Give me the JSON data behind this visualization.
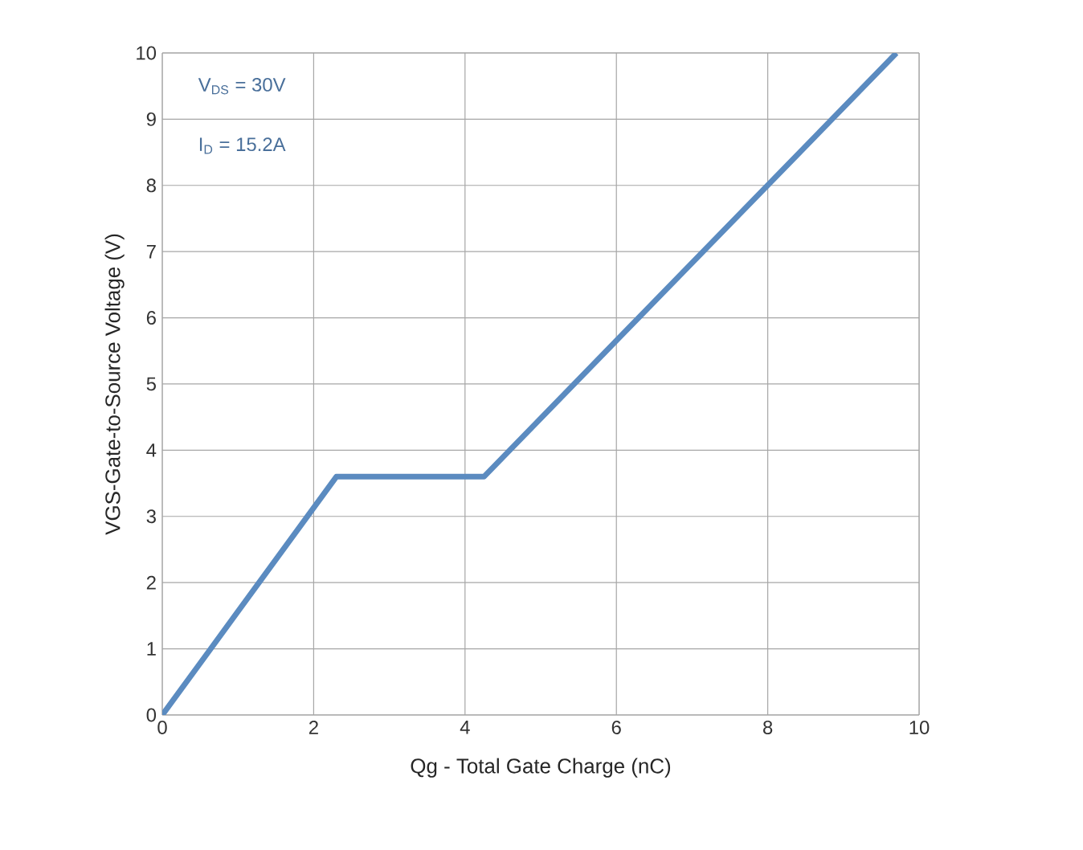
{
  "chart_data": {
    "type": "line",
    "xlabel": "Qg - Total Gate Charge (nC)",
    "ylabel": "VGS-Gate-to-Source Voltage (V)",
    "x": [
      0,
      2.3,
      4.25,
      9.7
    ],
    "series": [
      {
        "color": "#5b8bc0",
        "values": [
          0,
          3.6,
          3.6,
          10
        ]
      }
    ],
    "xlim": [
      0,
      10
    ],
    "ylim": [
      0,
      10
    ],
    "xticks": [
      0,
      2,
      4,
      6,
      8,
      10
    ],
    "yticks": [
      0,
      1,
      2,
      3,
      4,
      5,
      6,
      7,
      8,
      9,
      10
    ],
    "grid": true,
    "marker": "none",
    "line_style": "solid",
    "annotations": [
      "V$_{DS}$ = 30V",
      "I$_{D}$ = 15.2A"
    ]
  }
}
